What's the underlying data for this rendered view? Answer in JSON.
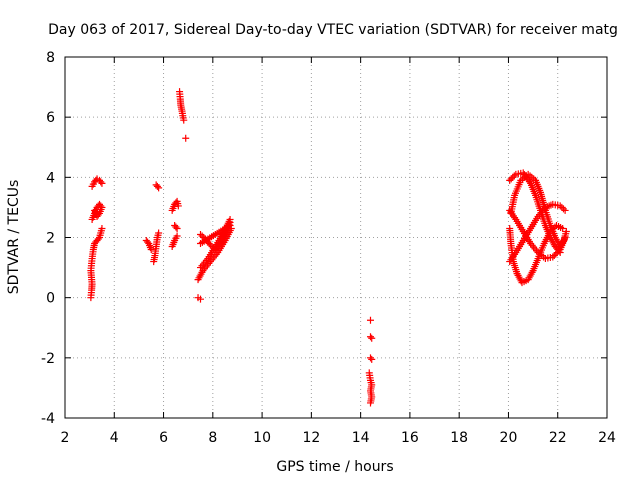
{
  "chart_data": {
    "type": "scatter",
    "title": "Day 063 of 2017, Sidereal Day-to-day VTEC variation (SDTVAR) for receiver matg",
    "xlabel": "GPS time / hours",
    "ylabel": "SDTVAR / TECUs",
    "xlim": [
      2,
      24
    ],
    "ylim": [
      -4,
      8
    ],
    "xticks": [
      2,
      4,
      6,
      8,
      10,
      12,
      14,
      16,
      18,
      20,
      22,
      24
    ],
    "yticks": [
      -4,
      -2,
      0,
      2,
      4,
      6,
      8
    ],
    "grid": true,
    "marker": "+",
    "color": "#ff0000",
    "series": [
      {
        "name": "SDTVAR",
        "segments": [
          [
            [
              3.05,
              0.0
            ],
            [
              3.08,
              0.25
            ],
            [
              3.1,
              0.45
            ],
            [
              3.05,
              0.9
            ],
            [
              3.1,
              1.3
            ],
            [
              3.15,
              1.6
            ],
            [
              3.2,
              1.8
            ],
            [
              3.3,
              1.9
            ],
            [
              3.4,
              2.0
            ],
            [
              3.45,
              2.15
            ],
            [
              3.5,
              2.3
            ]
          ],
          [
            [
              3.1,
              2.6
            ],
            [
              3.2,
              2.8
            ],
            [
              3.3,
              3.0
            ],
            [
              3.4,
              3.1
            ],
            [
              3.5,
              3.0
            ],
            [
              3.4,
              2.8
            ],
            [
              3.3,
              2.7
            ],
            [
              3.2,
              2.9
            ]
          ],
          [
            [
              3.1,
              3.7
            ],
            [
              3.2,
              3.85
            ],
            [
              3.3,
              3.95
            ],
            [
              3.4,
              3.9
            ],
            [
              3.5,
              3.8
            ]
          ],
          [
            [
              5.3,
              1.9
            ],
            [
              5.4,
              1.8
            ],
            [
              5.5,
              1.6
            ]
          ],
          [
            [
              5.6,
              1.2
            ],
            [
              5.65,
              1.4
            ],
            [
              5.7,
              1.7
            ],
            [
              5.75,
              2.0
            ],
            [
              5.8,
              2.15
            ]
          ],
          [
            [
              5.7,
              3.75
            ],
            [
              5.8,
              3.65
            ]
          ],
          [
            [
              6.35,
              1.7
            ],
            [
              6.45,
              1.9
            ],
            [
              6.55,
              2.05
            ]
          ],
          [
            [
              6.45,
              2.4
            ],
            [
              6.55,
              2.3
            ]
          ],
          [
            [
              6.35,
              2.9
            ],
            [
              6.45,
              3.1
            ],
            [
              6.55,
              3.2
            ],
            [
              6.6,
              3.05
            ]
          ],
          [
            [
              6.65,
              6.85
            ],
            [
              6.68,
              6.6
            ],
            [
              6.7,
              6.4
            ],
            [
              6.75,
              6.2
            ],
            [
              6.78,
              6.05
            ],
            [
              6.82,
              5.9
            ]
          ],
          [
            [
              6.9,
              5.3
            ]
          ],
          [
            [
              7.4,
              0.0
            ],
            [
              7.5,
              -0.05
            ]
          ],
          [
            [
              7.4,
              0.6
            ],
            [
              7.6,
              0.9
            ],
            [
              7.9,
              1.2
            ],
            [
              8.2,
              1.5
            ],
            [
              8.5,
              1.9
            ],
            [
              8.75,
              2.3
            ]
          ],
          [
            [
              7.5,
              1.0
            ],
            [
              7.8,
              1.3
            ],
            [
              8.1,
              1.7
            ],
            [
              8.4,
              2.1
            ],
            [
              8.7,
              2.6
            ]
          ],
          [
            [
              7.5,
              1.8
            ],
            [
              7.8,
              1.95
            ],
            [
              8.1,
              2.1
            ],
            [
              8.4,
              2.25
            ],
            [
              8.7,
              2.4
            ]
          ],
          [
            [
              7.5,
              2.1
            ],
            [
              7.7,
              1.95
            ],
            [
              7.9,
              1.75
            ],
            [
              8.1,
              1.6
            ],
            [
              8.3,
              1.8
            ],
            [
              8.5,
              2.2
            ],
            [
              8.7,
              2.5
            ]
          ],
          [
            [
              14.4,
              -0.75
            ]
          ],
          [
            [
              14.4,
              -1.3
            ],
            [
              14.45,
              -1.35
            ]
          ],
          [
            [
              14.4,
              -2.0
            ],
            [
              14.45,
              -2.05
            ]
          ],
          [
            [
              14.35,
              -2.5
            ],
            [
              14.4,
              -2.75
            ],
            [
              14.45,
              -2.9
            ],
            [
              14.4,
              -3.1
            ],
            [
              14.45,
              -3.3
            ],
            [
              14.4,
              -3.5
            ]
          ],
          [
            [
              20.05,
              1.2
            ],
            [
              20.3,
              1.5
            ],
            [
              20.6,
              1.9
            ],
            [
              20.9,
              2.3
            ],
            [
              21.2,
              2.7
            ],
            [
              21.5,
              3.0
            ],
            [
              21.8,
              3.1
            ],
            [
              22.1,
              3.05
            ],
            [
              22.3,
              2.9
            ]
          ],
          [
            [
              20.05,
              2.9
            ],
            [
              20.3,
              2.6
            ],
            [
              20.6,
              2.2
            ],
            [
              20.9,
              1.8
            ],
            [
              21.2,
              1.5
            ],
            [
              21.5,
              1.3
            ],
            [
              21.8,
              1.35
            ],
            [
              22.1,
              1.6
            ],
            [
              22.3,
              2.0
            ]
          ],
          [
            [
              20.05,
              3.9
            ],
            [
              20.3,
              4.1
            ],
            [
              20.6,
              4.15
            ],
            [
              20.9,
              3.8
            ],
            [
              21.1,
              3.4
            ],
            [
              21.3,
              2.9
            ],
            [
              21.5,
              2.4
            ],
            [
              21.7,
              2.0
            ],
            [
              21.9,
              1.7
            ],
            [
              22.1,
              1.5
            ]
          ],
          [
            [
              20.05,
              2.3
            ],
            [
              20.1,
              1.8
            ],
            [
              20.2,
              1.2
            ],
            [
              20.35,
              0.8
            ],
            [
              20.55,
              0.5
            ],
            [
              20.8,
              0.6
            ],
            [
              21.0,
              0.9
            ],
            [
              21.2,
              1.3
            ],
            [
              21.45,
              1.8
            ],
            [
              21.7,
              2.2
            ],
            [
              21.95,
              2.4
            ],
            [
              22.2,
              2.3
            ]
          ],
          [
            [
              20.1,
              2.8
            ],
            [
              20.25,
              3.4
            ],
            [
              20.5,
              3.9
            ],
            [
              20.8,
              4.1
            ],
            [
              21.1,
              3.9
            ],
            [
              21.3,
              3.5
            ],
            [
              21.5,
              2.9
            ],
            [
              21.7,
              2.4
            ],
            [
              21.9,
              2.0
            ],
            [
              22.1,
              1.7
            ],
            [
              22.25,
              1.9
            ],
            [
              22.35,
              2.2
            ]
          ]
        ]
      }
    ]
  }
}
